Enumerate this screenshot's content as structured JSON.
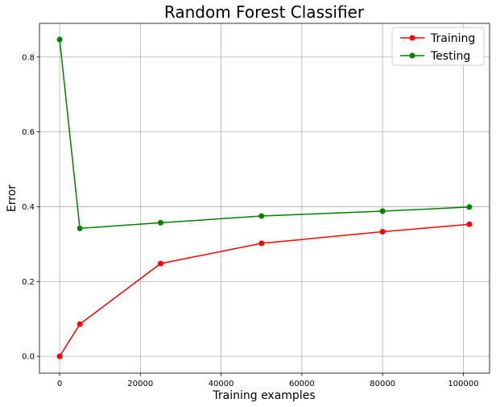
{
  "chart_data": {
    "type": "line",
    "title": "Random Forest Classifier",
    "xlabel": "Training examples",
    "ylabel": "Error",
    "xlim": [
      -5000,
      106500
    ],
    "ylim": [
      -0.045,
      0.89
    ],
    "x_ticks": [
      0,
      20000,
      40000,
      60000,
      80000,
      100000
    ],
    "x_tick_labels": [
      "0",
      "20000",
      "40000",
      "60000",
      "80000",
      "100000"
    ],
    "y_ticks": [
      0.0,
      0.2,
      0.4,
      0.6,
      0.8
    ],
    "y_tick_labels": [
      "0.0",
      "0.2",
      "0.4",
      "0.6",
      "0.8"
    ],
    "grid": true,
    "legend_position": "top-right",
    "x": [
      1,
      5000,
      25000,
      50000,
      80000,
      101500
    ],
    "series": [
      {
        "name": "Training",
        "color": "#ff0000",
        "values": [
          0.0,
          0.086,
          0.248,
          0.302,
          0.333,
          0.353
        ]
      },
      {
        "name": "Testing",
        "color": "#008000",
        "values": [
          0.847,
          0.342,
          0.357,
          0.375,
          0.388,
          0.399
        ]
      }
    ]
  }
}
